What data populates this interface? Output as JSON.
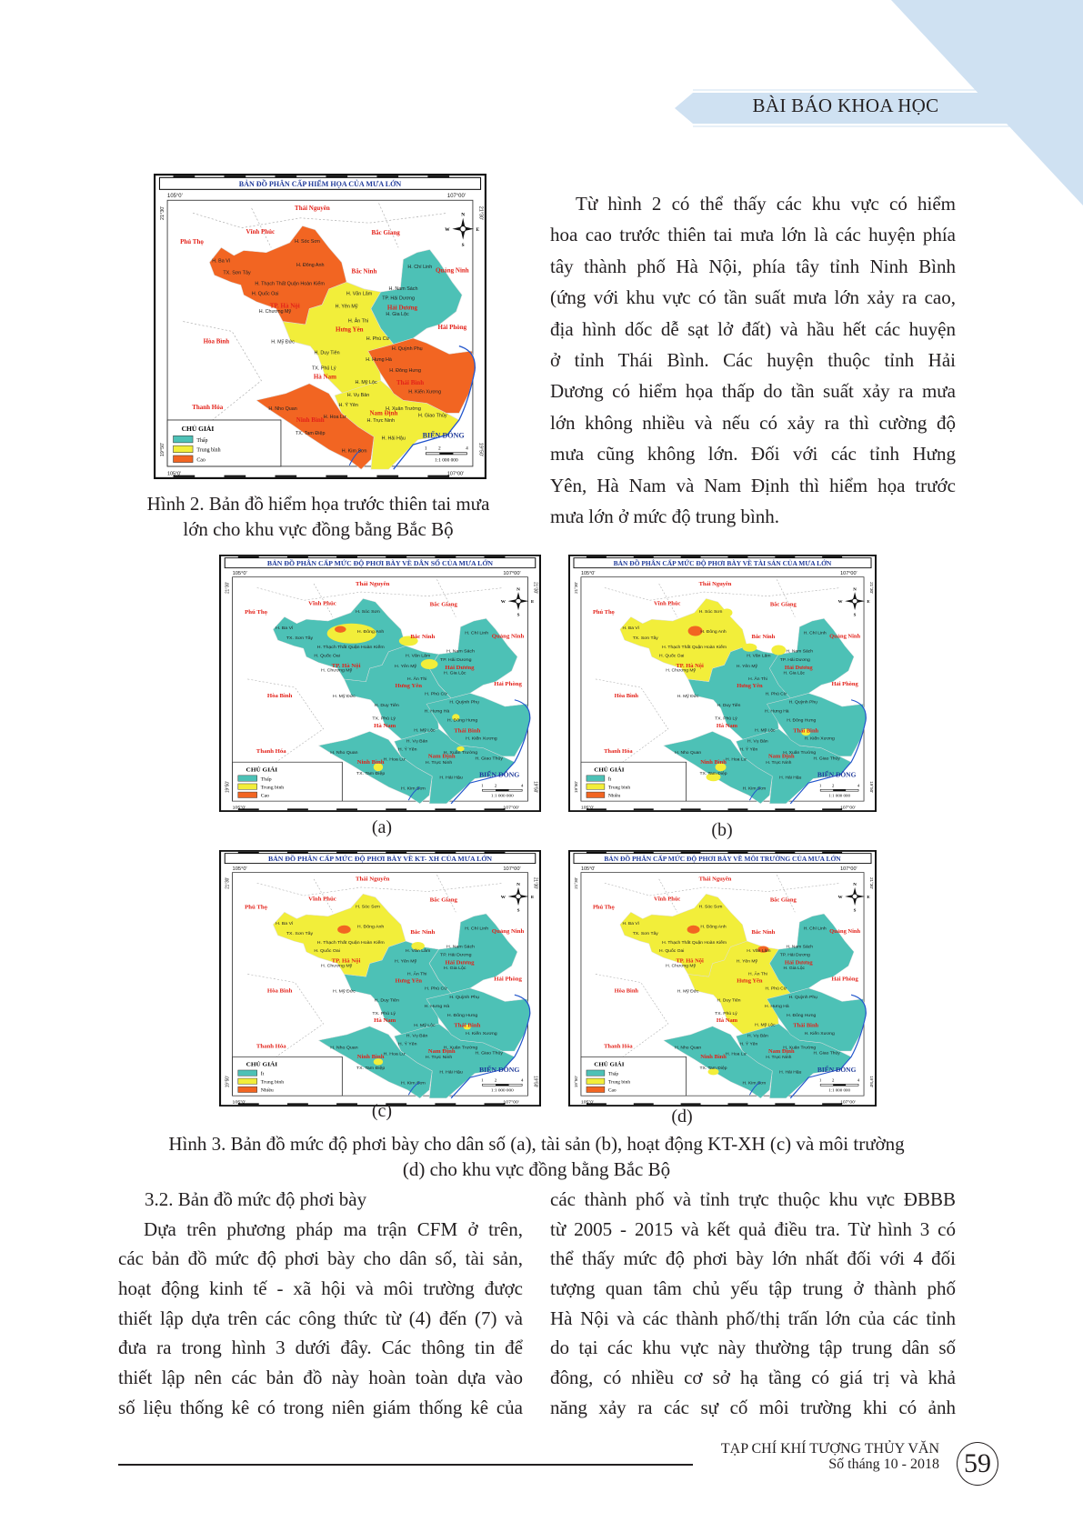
{
  "header": {
    "section": "BÀI BÁO KHOA HỌC"
  },
  "colors": {
    "low": "#4dc1b6",
    "medium": "#f2ee3a",
    "high": "#f26522",
    "map_title": "#1f3a9a",
    "province": "#e32119",
    "sea_label": "#1f3a9a",
    "banner": "#cfe1f2"
  },
  "map_common": {
    "legend_title": "CHỦ GIẢI",
    "lon_left": "105°0'",
    "lon_right": "107°00'",
    "lat_top": "21°30'",
    "lat_bottom": "19°50'",
    "compass": {
      "n": "N",
      "s": "S",
      "w": "W",
      "e": "E"
    },
    "scale_ticks": [
      "1",
      "2",
      "4"
    ],
    "scale": "1:1 000 000",
    "sea": "BIỂN ĐÔNG",
    "provinces": [
      "Thái Nguyên",
      "Vĩnh Phúc",
      "Bắc Giang",
      "Phú Thọ",
      "Bắc Ninh",
      "Quảng Ninh",
      "TP. Hà Nội",
      "Hải Dương",
      "Hải Phòng",
      "Hưng Yên",
      "Hòa Bình",
      "Hà Nam",
      "Thái Bình",
      "Thanh Hóa",
      "Nam Định",
      "Ninh Bình"
    ],
    "districts": [
      "H. Sóc Sơn",
      "H. Ba Vì",
      "H. Đông Anh",
      "TX. Sơn Tây",
      "H. Thạch Thất Quận Hoàn Kiếm",
      "H. Quốc Oai",
      "H. Chương Mỹ",
      "H. Chí Linh",
      "H. Nam Sách",
      "H. Văn Lâm",
      "TP. Hải Dương",
      "H. Yên Mỹ",
      "H. Gia Lộc",
      "H. Ân Thi",
      "H. Phù Cừ",
      "H. Mỹ Đức",
      "H. Quỳnh Phụ",
      "H. Duy Tiên",
      "H. Hưng Hà",
      "TX. Phủ Lý",
      "H. Đông Hưng",
      "H. Mỹ Lộc",
      "H. Kiến Xương",
      "H. Vụ Bản",
      "H. Ý Yên",
      "H. Nho Quan",
      "H. Xuân Trường",
      "H. Hoa Lư",
      "H. Trực Ninh",
      "H. Giao Thủy",
      "TX. Tam Điệp",
      "H. Hải Hậu",
      "H. Kim Sơn"
    ]
  },
  "maps": [
    {
      "title": "BẢN ĐỒ PHÂN CẤP HIỂM HỌA CỦA MƯA LỚN",
      "legend": [
        "Thấp",
        "Trung bình",
        "Cao"
      ],
      "regions": {
        "middle": "medium",
        "namdinh": "medium",
        "hanoi": "high",
        "haiduong": "low",
        "thaibinh": "high",
        "ninhbinh": "high"
      }
    },
    {
      "title": "BẢN ĐỒ PHÂN CẤP MỨC ĐỘ PHƠI BÀY VỀ DÂN SỐ CỦA MƯA LỚN",
      "legend": [
        "Thấp",
        "Trung bình",
        "Cao"
      ],
      "regions": {
        "middle": "low",
        "namdinh": "low",
        "hanoi": "low",
        "haiduong": "low",
        "thaibinh": "low",
        "ninhbinh": "low"
      }
    },
    {
      "title": "BẢN ĐỒ PHÂN CẤP MỨC ĐỘ PHƠI BÀY VỀ TÀI SẢN CỦA MƯA LỚN",
      "legend": [
        "Ít",
        "Trung bình",
        "Nhiều"
      ],
      "regions": {
        "middle": "low",
        "namdinh": "low",
        "hanoi": "medium",
        "haiduong": "low",
        "thaibinh": "low",
        "ninhbinh": "low"
      }
    },
    {
      "title": "BẢN ĐỒ PHÂN CẤP MỨC ĐỘ PHƠI BÀY VỀ KT- XH CỦA MƯA LỚN",
      "legend": [
        "Ít",
        "Trung bình",
        "Nhiều"
      ],
      "regions": {
        "middle": "low",
        "namdinh": "low",
        "hanoi": "medium",
        "haiduong": "low",
        "thaibinh": "low",
        "ninhbinh": "low"
      }
    },
    {
      "title": "BẢN ĐỒ PHÂN CẤP MỨC ĐỘ PHƠI BÀY VỀ MÔI TRƯỜNG CỦA MƯA LỚN",
      "legend": [
        "Thấp",
        "Trung bình",
        "Cao"
      ],
      "regions": {
        "middle": "medium",
        "namdinh": "low",
        "hanoi": "medium",
        "haiduong": "low",
        "thaibinh": "low",
        "ninhbinh": "low"
      }
    }
  ],
  "figure2": {
    "caption_lines": [
      "Hình 2. Bản đồ hiểm họa trước thiên tai mưa",
      "lớn cho khu vực đồng bằng Bắc Bộ"
    ]
  },
  "figure3": {
    "labels": [
      "(a)",
      "(b)",
      "(c)",
      "(d)"
    ],
    "caption_lines": [
      "Hình 3. Bản đồ mức độ phơi bày cho dân số (a), tài sản (b), hoạt động KT-XH (c) và môi trường",
      "(d) cho khu vực đồng bằng Bắc Bộ"
    ]
  },
  "text_top_right": [
    "Từ hình 2 có thể thấy các khu vực có hiểm",
    "hoa cao trước thiên tai mưa lớn là các huyện phía",
    "tây thành phố Hà Nội, phía tây tỉnh Ninh Bình",
    "(ứng với khu vực có tần suất mưa lớn xảy ra cao,",
    "địa hình dốc dễ sạt lở đất) và hầu hết các huyện",
    "ở tỉnh Thái Bình. Các huyện thuộc tỉnh Hải",
    "Dương có hiểm họa thấp do tần suất xảy ra mưa",
    "lớn không nhiều và nếu có xảy ra thì cường độ",
    "mưa cũng không lớn. Đối với các tỉnh Hưng",
    "Yên, Hà Nam và Nam Định thì hiểm họa trước",
    "mưa lớn ở mức độ trung bình."
  ],
  "section_heading": "3.2. Bản đồ mức độ phơi bày",
  "text_bottom_left": [
    "Dựa trên phương pháp ma trận CFM ở trên,",
    "các bản đồ mức độ phơi bày cho dân số, tài sản,",
    "hoạt động kinh tế - xã hội và môi trường được",
    "thiết lập dựa trên các công thức từ (4) đến (7) và",
    "đưa ra trong hình 3 dưới đây. Các thông tin để",
    "thiết lập nên các bản đồ này hoàn toàn dựa vào",
    "số liệu thống kê có trong niên giám thống kê của"
  ],
  "text_bottom_right": [
    "các thành phố và tỉnh trực thuộc khu vực ĐBBB",
    "từ 2005 - 2015 và kết quả điều tra. Từ hình 3 có",
    "thể thấy mức độ phơi bày lớn nhất đối với 4 đối",
    "tượng quan tâm chủ yếu tập trung ở thành phố",
    "Hà Nội và các thành phố/thị trấn lớn của các tỉnh",
    "do tại các khu vực này thường tập trung dân số",
    "đông, có nhiều cơ sở hạ tầng có giá trị và khả",
    "năng xảy ra các sự cố môi trường khi có ảnh"
  ],
  "footer": {
    "journal": "TẠP CHÍ KHÍ TƯỢNG THỦY VĂN",
    "issue": "Số tháng 10 - 2018",
    "page": "59"
  }
}
